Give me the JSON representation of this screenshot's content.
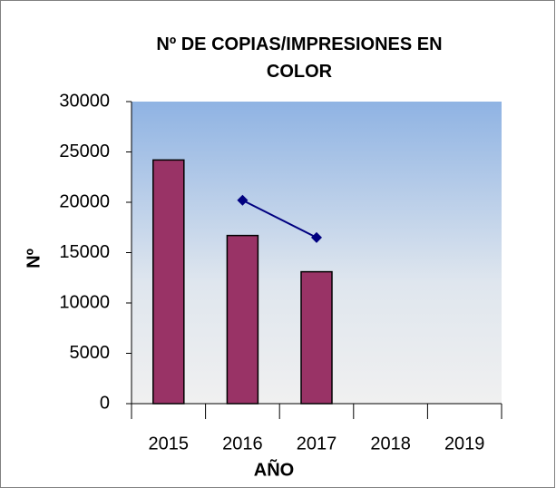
{
  "chart_data": {
    "type": "bar",
    "title": "Nº DE COPIAS/IMPRESIONES EN COLOR",
    "x_label": "AÑO",
    "y_label": "Nº",
    "categories": [
      "2015",
      "2016",
      "2017",
      "2018",
      "2019"
    ],
    "series": [
      {
        "type": "bar",
        "color": "#993366",
        "values": [
          24200,
          16700,
          13100,
          null,
          null
        ]
      },
      {
        "type": "line",
        "color": "#000080",
        "values": [
          null,
          20200,
          16500,
          null,
          null
        ]
      }
    ],
    "ylim": [
      0,
      30000
    ],
    "yticks": [
      0,
      5000,
      10000,
      15000,
      20000,
      25000,
      30000
    ]
  }
}
